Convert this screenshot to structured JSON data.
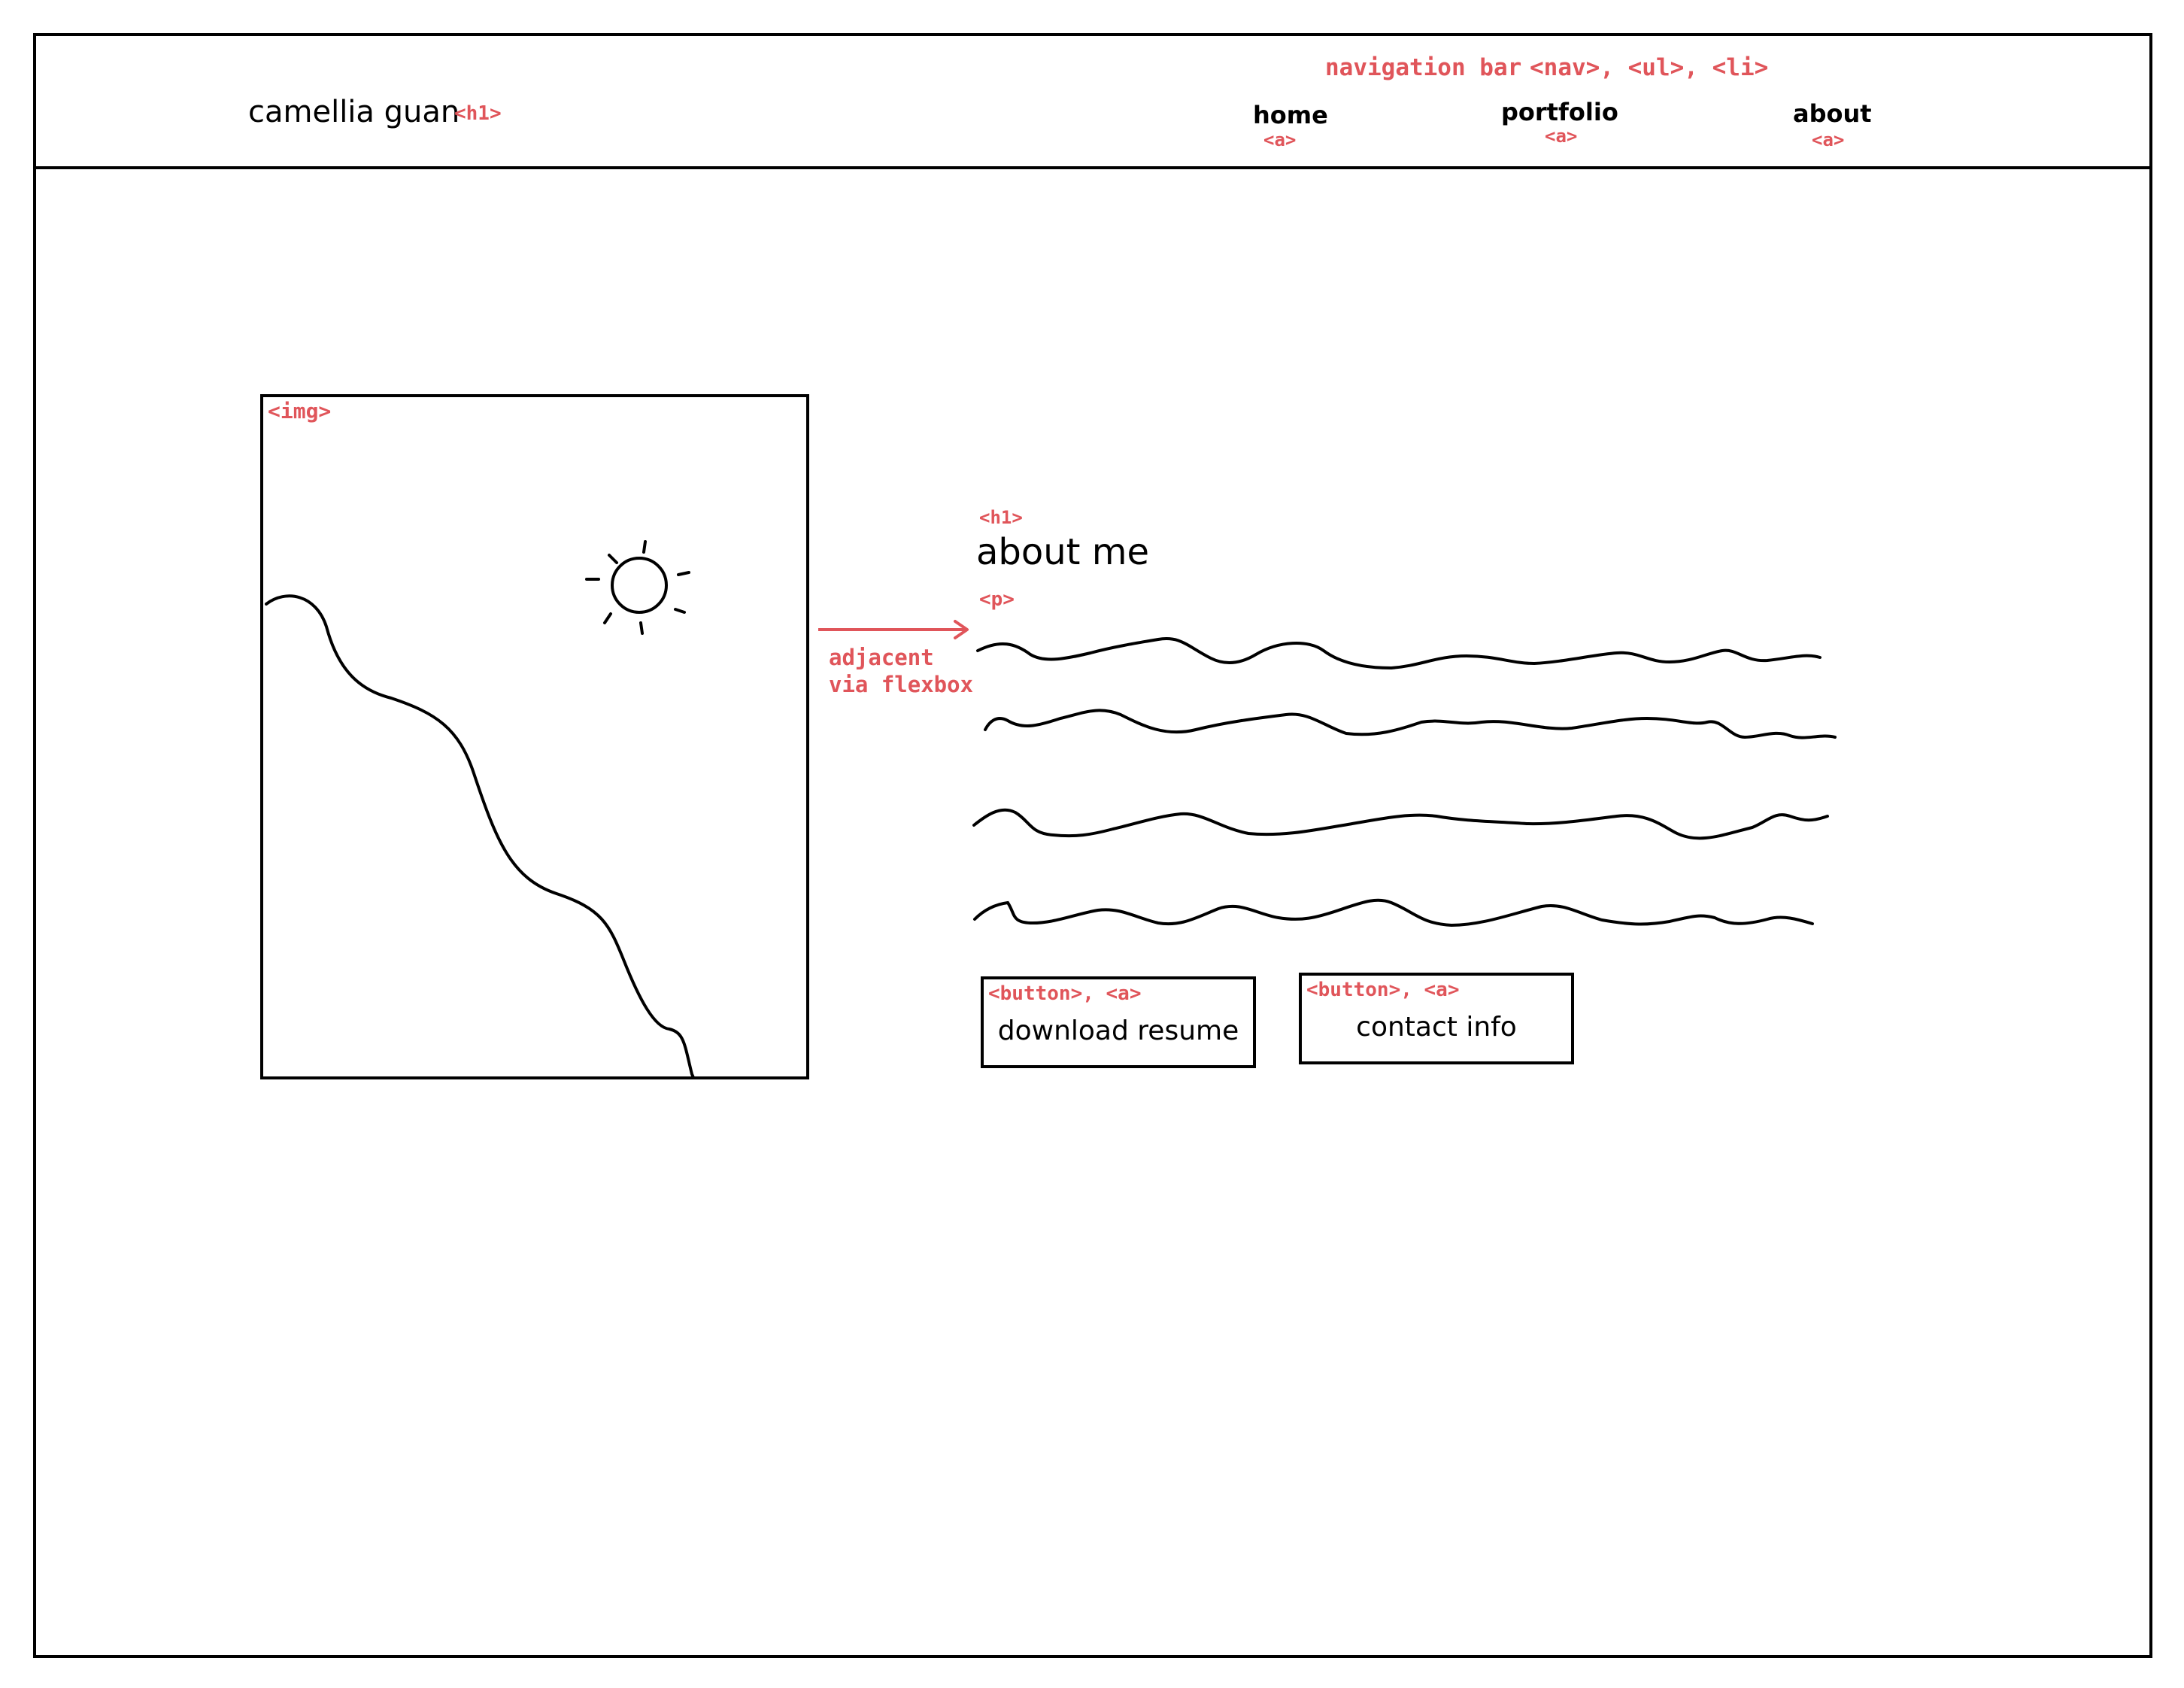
{
  "header": {
    "site_title": "camellia guan",
    "site_title_tag": "<h1>",
    "nav_annotation": "navigation bar",
    "nav_annotation_tags": "<nav>, <ul>, <li>",
    "nav_items": [
      {
        "label": "home",
        "tag": "<a>"
      },
      {
        "label": "portfolio",
        "tag": "<a>"
      },
      {
        "label": "about",
        "tag": "<a>"
      }
    ]
  },
  "image": {
    "tag": "<img>",
    "icon": "sun-icon"
  },
  "layout_note": {
    "line1": "adjacent",
    "line2": "via flexbox"
  },
  "about": {
    "heading_tag": "<h1>",
    "heading": "about me",
    "paragraph_tag": "<p>"
  },
  "buttons": [
    {
      "tag": "<button>, <a>",
      "label": "download resume"
    },
    {
      "tag": "<button>, <a>",
      "label": "contact info"
    }
  ],
  "colors": {
    "annotation": "#e0555a",
    "ink": "#000000",
    "background": "#ffffff"
  }
}
